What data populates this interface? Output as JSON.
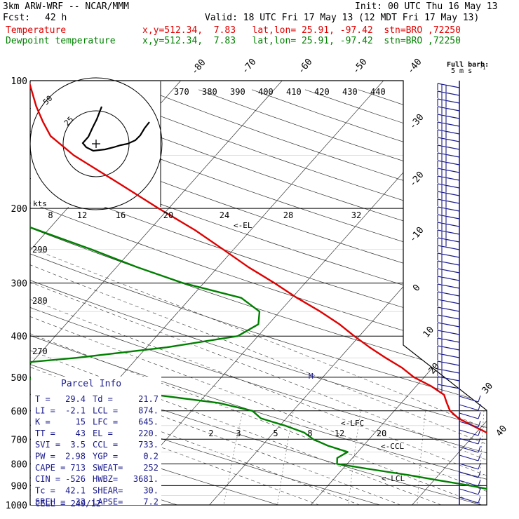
{
  "header": {
    "model": "3km ARW-WRF -- NCAR/MMM",
    "init": "Init: 00 UTC Thu 16 May 13",
    "fcst_label": "Fcst:",
    "fcst_value": "42 h",
    "valid": "Valid: 18 UTC Fri 17 May 13 (12 MDT Fri 17 May 13)",
    "temp_label": "Temperature",
    "temp_info": "x,y=512.34,  7.83   lat,lon= 25.91, -97.42  stn=BRO ,72250",
    "dew_label": "Dewpoint temperature",
    "dew_info": "x,y=512.34,  7.83   lat,lon= 25.91, -97.42  stn=BRO ,72250"
  },
  "barb_legend": {
    "line1": "Full barb:",
    "line2": "5 m s"
  },
  "parcel": {
    "title": "Parcel Info",
    "rows": [
      [
        "T   =",
        "29.4",
        "Td  =",
        "21.7"
      ],
      [
        "LI  =",
        "-2.1",
        "LCL =",
        "874."
      ],
      [
        "K   =",
        "15",
        "LFC =",
        "645."
      ],
      [
        "TT  =",
        "43",
        "EL  =",
        "220."
      ],
      [
        "SVI =",
        "3.5",
        "CCL =",
        "733."
      ],
      [
        "PW  =",
        "2.98",
        "YGP =",
        "0.2"
      ],
      [
        "CAPE =",
        "713",
        "SWEAT=",
        "252"
      ],
      [
        "CIN =",
        "-526",
        "HWBZ=",
        "3681."
      ],
      [
        "Tc  =",
        "42.1",
        "SHEAR=",
        "30."
      ],
      [
        "SREH =",
        "32",
        "LAPSE=",
        "7.2"
      ]
    ],
    "cell": "CELL = 249/12"
  },
  "hodograph": {
    "units": "kts",
    "rings": [
      "25",
      "50"
    ],
    "speed_ticks": [
      "8",
      "12",
      "16",
      "20",
      "24",
      "28",
      "32"
    ]
  },
  "level_labels": {
    "el": "<-EL",
    "m": "M",
    "lfc": "<-LFC",
    "ccl": "<-CCL",
    "lcl": "<-LCL"
  },
  "colors": {
    "temperature": "#e00000",
    "dewpoint": "#008000",
    "barbs": "#1a1a8c"
  },
  "chart_data": {
    "type": "line",
    "chart_kind": "skew-T log-P sounding",
    "y_scale": "log",
    "ylim": [
      1000,
      100
    ],
    "pressure_ticks": [
      100,
      200,
      300,
      400,
      500,
      600,
      700,
      800,
      900,
      1000
    ],
    "isotherm_labels": [
      "-80",
      "-70",
      "-60",
      "-50",
      "-40",
      "-30",
      "-20",
      "-10",
      "0",
      "10",
      "20",
      "30",
      "40"
    ],
    "theta_labels": [
      "370",
      "380",
      "390",
      "400",
      "410",
      "420",
      "430",
      "440"
    ],
    "dry_adiabat_labels": [
      "290",
      "280",
      "270"
    ],
    "mixing_ratio_labels": [
      "2",
      "3",
      "5",
      "8",
      "12",
      "20"
    ],
    "series": [
      {
        "name": "Temperature",
        "points": [
          [
            1000,
            31.0
          ],
          [
            975,
            28.0
          ],
          [
            950,
            27.0
          ],
          [
            925,
            26.5
          ],
          [
            900,
            26.5
          ],
          [
            875,
            25.5
          ],
          [
            850,
            23.5
          ],
          [
            825,
            21.5
          ],
          [
            800,
            19.5
          ],
          [
            775,
            18.0
          ],
          [
            750,
            16.5
          ],
          [
            725,
            15.0
          ],
          [
            700,
            13.0
          ],
          [
            675,
            11.0
          ],
          [
            650,
            9.0
          ],
          [
            625,
            7.0
          ],
          [
            600,
            5.5
          ],
          [
            575,
            4.5
          ],
          [
            550,
            3.5
          ],
          [
            525,
            1.5
          ],
          [
            500,
            -1.0
          ],
          [
            475,
            -3.0
          ],
          [
            450,
            -5.5
          ],
          [
            425,
            -8.0
          ],
          [
            400,
            -10.5
          ],
          [
            375,
            -13.0
          ],
          [
            350,
            -16.0
          ],
          [
            325,
            -19.5
          ],
          [
            300,
            -23.0
          ],
          [
            275,
            -27.0
          ],
          [
            250,
            -31.0
          ],
          [
            225,
            -35.5
          ],
          [
            200,
            -41.0
          ],
          [
            175,
            -47.0
          ],
          [
            150,
            -54.0
          ],
          [
            135,
            -58.0
          ],
          [
            125,
            -60.0
          ],
          [
            115,
            -62.0
          ],
          [
            100,
            -65.0
          ]
        ]
      },
      {
        "name": "Dewpoint temperature",
        "points": [
          [
            1000,
            22.5
          ],
          [
            950,
            21.5
          ],
          [
            925,
            17.0
          ],
          [
            900,
            14.0
          ],
          [
            875,
            10.5
          ],
          [
            850,
            7.0
          ],
          [
            825,
            3.0
          ],
          [
            800,
            -1.0
          ],
          [
            775,
            -1.5
          ],
          [
            750,
            -1.0
          ],
          [
            725,
            -3.5
          ],
          [
            700,
            -5.5
          ],
          [
            675,
            -7.0
          ],
          [
            650,
            -9.5
          ],
          [
            625,
            -12.5
          ],
          [
            600,
            -14.0
          ],
          [
            575,
            -18.0
          ],
          [
            550,
            -25.0
          ],
          [
            525,
            -33.0
          ],
          [
            500,
            -40.0
          ],
          [
            475,
            -46.0
          ],
          [
            450,
            -36.0
          ],
          [
            425,
            -28.0
          ],
          [
            400,
            -22.0
          ],
          [
            375,
            -21.0
          ],
          [
            350,
            -22.0
          ],
          [
            325,
            -25.0
          ],
          [
            300,
            -32.0
          ],
          [
            275,
            -38.0
          ],
          [
            250,
            -44.0
          ],
          [
            225,
            -51.0
          ],
          [
            200,
            -59.0
          ],
          [
            190,
            -62.0
          ],
          [
            175,
            -63.0
          ],
          [
            150,
            -64.0
          ],
          [
            125,
            -66.0
          ],
          [
            110,
            -67.0
          ],
          [
            100,
            -68.0
          ]
        ]
      }
    ]
  }
}
